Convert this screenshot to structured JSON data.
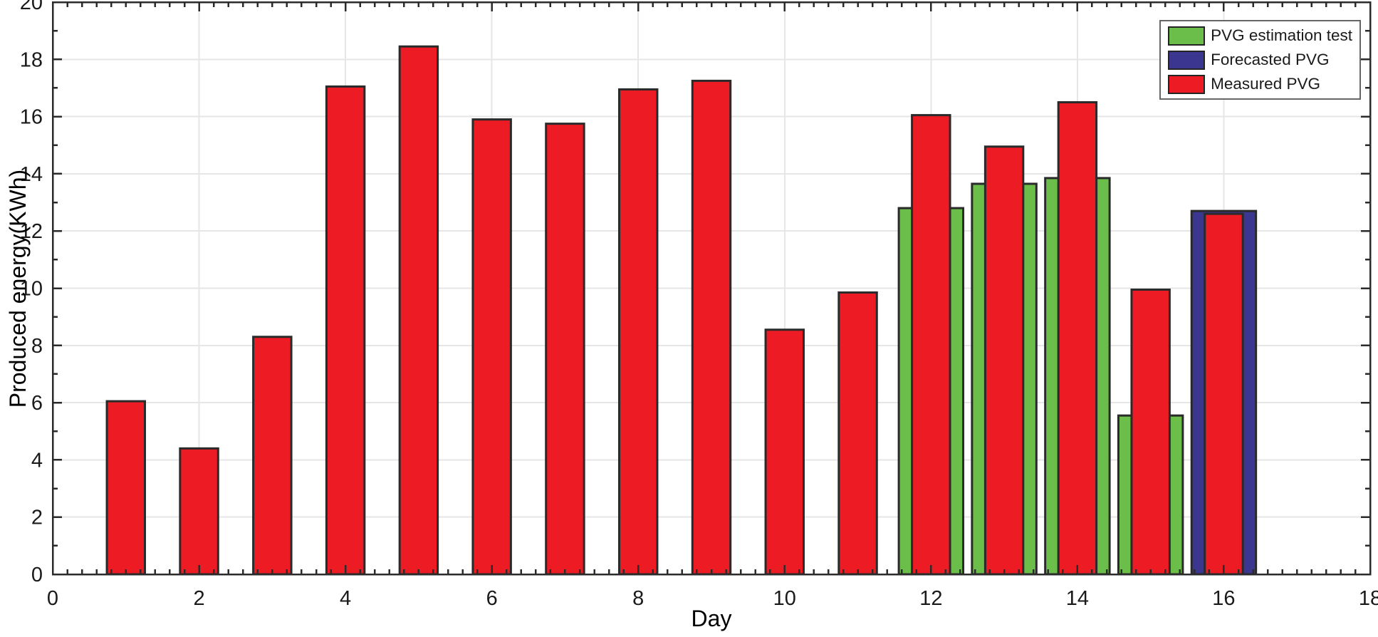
{
  "figure": {
    "title": "",
    "background_color": "#ffffff"
  },
  "chart_data": {
    "type": "bar",
    "title": "",
    "xlabel": "Day",
    "ylabel": "Produced energy(KWh)",
    "xlim": [
      0,
      18
    ],
    "ylim": [
      0,
      20
    ],
    "grid": true,
    "x_ticks": [
      0,
      2,
      4,
      6,
      8,
      10,
      12,
      14,
      16,
      18
    ],
    "x_tick_labels": [
      "0",
      "2",
      "4",
      "6",
      "8",
      "10",
      "12",
      "14",
      "16",
      "18"
    ],
    "x_minor_tick_step": 0.2,
    "y_ticks": [
      0,
      2,
      4,
      6,
      8,
      10,
      12,
      14,
      16,
      18,
      20
    ],
    "y_tick_labels": [
      "0",
      "2",
      "4",
      "6",
      "8",
      "10",
      "12",
      "14",
      "16",
      "18",
      "20"
    ],
    "y_minor_tick_step": 1,
    "axis_color": "#2b2b2b",
    "grid_color": "#e6e6e6",
    "bar_edge_color": "#2a2a2a",
    "legend_position": "top-right",
    "series": [
      {
        "name": "PVG estimation test",
        "color": "#6cbe4a",
        "bar_width": 0.88,
        "x": [
          12,
          13,
          14,
          15
        ],
        "values": [
          12.8,
          13.65,
          13.85,
          5.55
        ]
      },
      {
        "name": "Forecasted PVG",
        "color": "#3b3690",
        "bar_width": 0.88,
        "x": [
          16
        ],
        "values": [
          12.7
        ]
      },
      {
        "name": "Measured PVG",
        "color": "#ed1c24",
        "bar_width": 0.52,
        "x": [
          1,
          2,
          3,
          4,
          5,
          6,
          7,
          8,
          9,
          10,
          11,
          12,
          13,
          14,
          15,
          16
        ],
        "values": [
          6.05,
          4.4,
          8.3,
          17.05,
          18.45,
          15.9,
          15.75,
          16.95,
          17.25,
          8.55,
          9.85,
          16.05,
          14.95,
          16.5,
          9.95,
          12.6
        ]
      }
    ]
  }
}
